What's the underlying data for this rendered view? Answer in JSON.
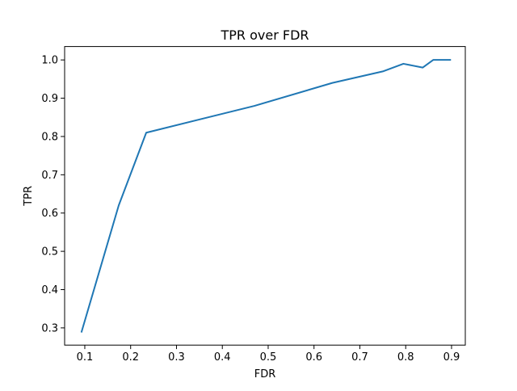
{
  "chart_data": {
    "type": "line",
    "title": "TPR over FDR",
    "xlabel": "FDR",
    "ylabel": "TPR",
    "xlim": [
      0.056,
      0.93
    ],
    "ylim": [
      0.255,
      1.035
    ],
    "xticks": [
      0.1,
      0.2,
      0.3,
      0.4,
      0.5,
      0.6,
      0.7,
      0.8,
      0.9
    ],
    "xtick_labels": [
      "0.1",
      "0.2",
      "0.3",
      "0.4",
      "0.5",
      "0.6",
      "0.7",
      "0.8",
      "0.9"
    ],
    "yticks": [
      0.3,
      0.4,
      0.5,
      0.6,
      0.7,
      0.8,
      0.9,
      1.0
    ],
    "ytick_labels": [
      "0.3",
      "0.4",
      "0.5",
      "0.6",
      "0.7",
      "0.8",
      "0.9",
      "1.0"
    ],
    "grid": false,
    "legend": null,
    "series": [
      {
        "color": "#1f77b4",
        "x": [
          0.093,
          0.174,
          0.234,
          0.47,
          0.64,
          0.75,
          0.795,
          0.837,
          0.86,
          0.897
        ],
        "y": [
          0.29,
          0.62,
          0.81,
          0.88,
          0.94,
          0.97,
          0.99,
          0.98,
          1.0,
          1.0
        ]
      }
    ]
  }
}
